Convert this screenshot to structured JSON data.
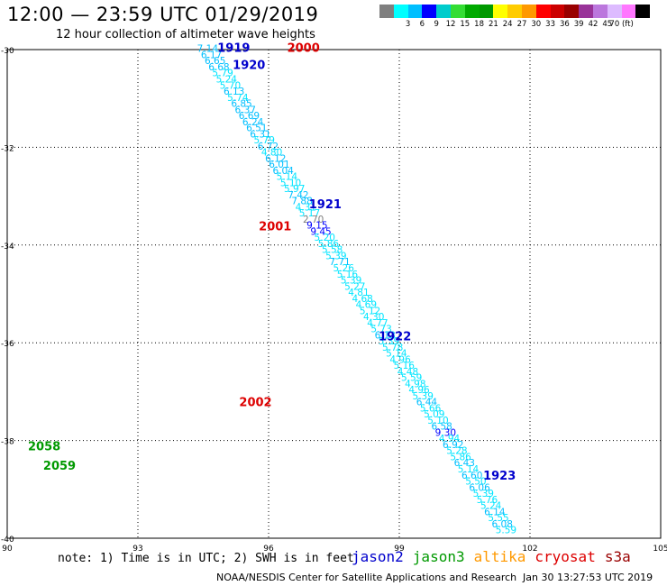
{
  "title": "12:00 — 23:59 UTC 01/29/2019",
  "subtitle": "12 hour collection of altimeter wave heights",
  "legend": {
    "colors": [
      "#7f7f7f",
      "#00ffff",
      "#00bfff",
      "#0000ff",
      "#00cccc",
      "#33dd33",
      "#00aa00",
      "#009900",
      "#ffff00",
      "#ffcc00",
      "#ff9900",
      "#ff0000",
      "#cc0000",
      "#990000",
      "#993399",
      "#bb77dd",
      "#ddbbff",
      "#ff77ff",
      "#000000"
    ],
    "labels": [
      "3",
      "6",
      "9",
      "12",
      "15",
      "18",
      "21",
      "24",
      "27",
      "30",
      "33",
      "36",
      "39",
      "42",
      "45",
      "70 (ft)"
    ]
  },
  "map": {
    "lon_range": [
      90,
      105
    ],
    "lat_range": [
      -40,
      -30
    ],
    "x_ticks": [
      "90",
      "93",
      "96",
      "99",
      "102",
      "105"
    ],
    "y_ticks": [
      "-30",
      "-32",
      "-34",
      "-36",
      "-38",
      "-40"
    ]
  },
  "passes": [
    {
      "label": "1919",
      "sat": "jason2",
      "lon": 95.2,
      "lat": -30.05
    },
    {
      "label": "1920",
      "sat": "jason2",
      "lon": 95.55,
      "lat": -30.4
    },
    {
      "label": "1921",
      "sat": "jason2",
      "lon": 97.3,
      "lat": -33.25
    },
    {
      "label": "1922",
      "sat": "jason2",
      "lon": 98.9,
      "lat": -35.95
    },
    {
      "label": "1923",
      "sat": "jason2",
      "lon": 101.3,
      "lat": -38.8
    },
    {
      "label": "2000",
      "sat": "cryosat",
      "lon": 96.8,
      "lat": -30.05
    },
    {
      "label": "2001",
      "sat": "cryosat",
      "lon": 96.15,
      "lat": -33.7
    },
    {
      "label": "2002",
      "sat": "cryosat",
      "lon": 95.7,
      "lat": -37.3
    },
    {
      "label": "2058",
      "sat": "jason3",
      "lon": 90.85,
      "lat": -38.2
    },
    {
      "label": "2059",
      "sat": "jason3",
      "lon": 91.2,
      "lat": -38.6
    }
  ],
  "tracks": [
    {
      "name": "track-desc-main",
      "lon_start": 94.6,
      "lat_start": -30.05,
      "lon_end": 101.45,
      "lat_end": -39.9,
      "values": [
        "7.14",
        "6.17",
        "6.65",
        "6.68",
        "5.79",
        "5.24",
        "5.70",
        "6.13",
        "5.74",
        "6.85",
        "6.37",
        "6.69",
        "6.24",
        "6.51",
        "6.31",
        "5.79",
        "6.72",
        "4.80",
        "6.12",
        "6.01",
        "6.04",
        "5.14",
        "5.10",
        "5.97",
        "7.42",
        "7.88",
        "4.31",
        "5.17",
        "2.70",
        "9.15",
        "9.45",
        "5.20",
        "5.86",
        "5.58",
        "5.39",
        "7.71",
        "5.26",
        "5.16",
        "5.39",
        "5.27",
        "4.81",
        "4.68",
        "4.69",
        "5.12",
        "4.30",
        "4.77",
        "5.73",
        "6.13",
        "5.39",
        "5.78",
        "5.14",
        "4.96",
        "5.16",
        "4.48",
        "5.59",
        "4.98",
        "4.96",
        "5.39",
        "6.44",
        "5.66",
        "5.09",
        "5.10",
        "6.58",
        "9.30",
        "4.94",
        "6.92",
        "5.28",
        "5.86",
        "6.43",
        "5.14",
        "6.60",
        "5.50",
        "6.06",
        "5.39",
        "5.76",
        "5.24",
        "6.14",
        "5.55",
        "6.08",
        "5.59"
      ]
    }
  ],
  "note": "note: 1) Time is in UTC; 2) SWH is in feet",
  "satellites": [
    {
      "name": "jason2",
      "color": "#0000cc"
    },
    {
      "name": "jason3",
      "color": "#009900"
    },
    {
      "name": "altika",
      "color": "#ff9900"
    },
    {
      "name": "cryosat",
      "color": "#dd0000"
    },
    {
      "name": "s3a",
      "color": "#990000"
    }
  ],
  "credit": "NOAA/NESDIS Center for Satellite Applications and Research",
  "timestamp": "Jan 30 13:27:53 UTC 2019"
}
